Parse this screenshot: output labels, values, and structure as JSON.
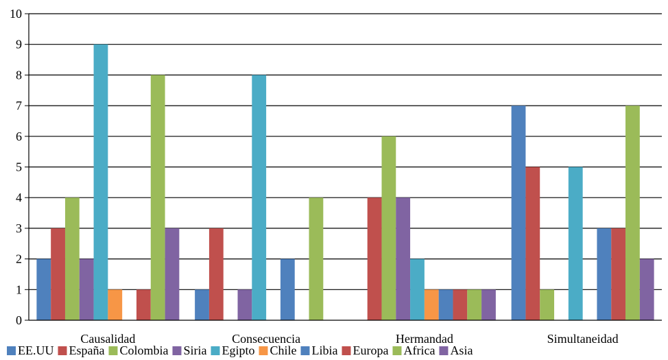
{
  "chart_data": {
    "type": "bar",
    "categories": [
      "Causalidad",
      "Consecuencia",
      "Hermandad",
      "Simultaneidad"
    ],
    "ylim": [
      0,
      10
    ],
    "yticks": [
      "0",
      "1",
      "2",
      "3",
      "4",
      "5",
      "6",
      "7",
      "8",
      "9",
      "10"
    ],
    "grid": true,
    "legend_position": "bottom",
    "series": [
      {
        "name": "EE.UU",
        "color": "#4f81bd",
        "values": [
          2,
          1,
          0,
          7
        ]
      },
      {
        "name": "España",
        "color": "#c0504d",
        "values": [
          3,
          3,
          4,
          5
        ]
      },
      {
        "name": "Colombia",
        "color": "#9bbb59",
        "values": [
          4,
          0,
          6,
          1
        ]
      },
      {
        "name": "Siria",
        "color": "#8064a2",
        "values": [
          2,
          1,
          4,
          0
        ]
      },
      {
        "name": "Egipto",
        "color": "#4bacc6",
        "values": [
          9,
          8,
          2,
          5
        ]
      },
      {
        "name": "Chile",
        "color": "#f79646",
        "values": [
          1,
          0,
          1,
          0
        ]
      },
      {
        "name": "Libia",
        "color": "#4f81bd",
        "values": [
          0,
          2,
          1,
          3
        ]
      },
      {
        "name": "Europa",
        "color": "#c0504d",
        "values": [
          1,
          0,
          1,
          3
        ]
      },
      {
        "name": "Africa",
        "color": "#9bbb59",
        "values": [
          8,
          4,
          1,
          7
        ]
      },
      {
        "name": "Asia",
        "color": "#8064a2",
        "values": [
          3,
          0,
          1,
          2
        ]
      }
    ]
  }
}
